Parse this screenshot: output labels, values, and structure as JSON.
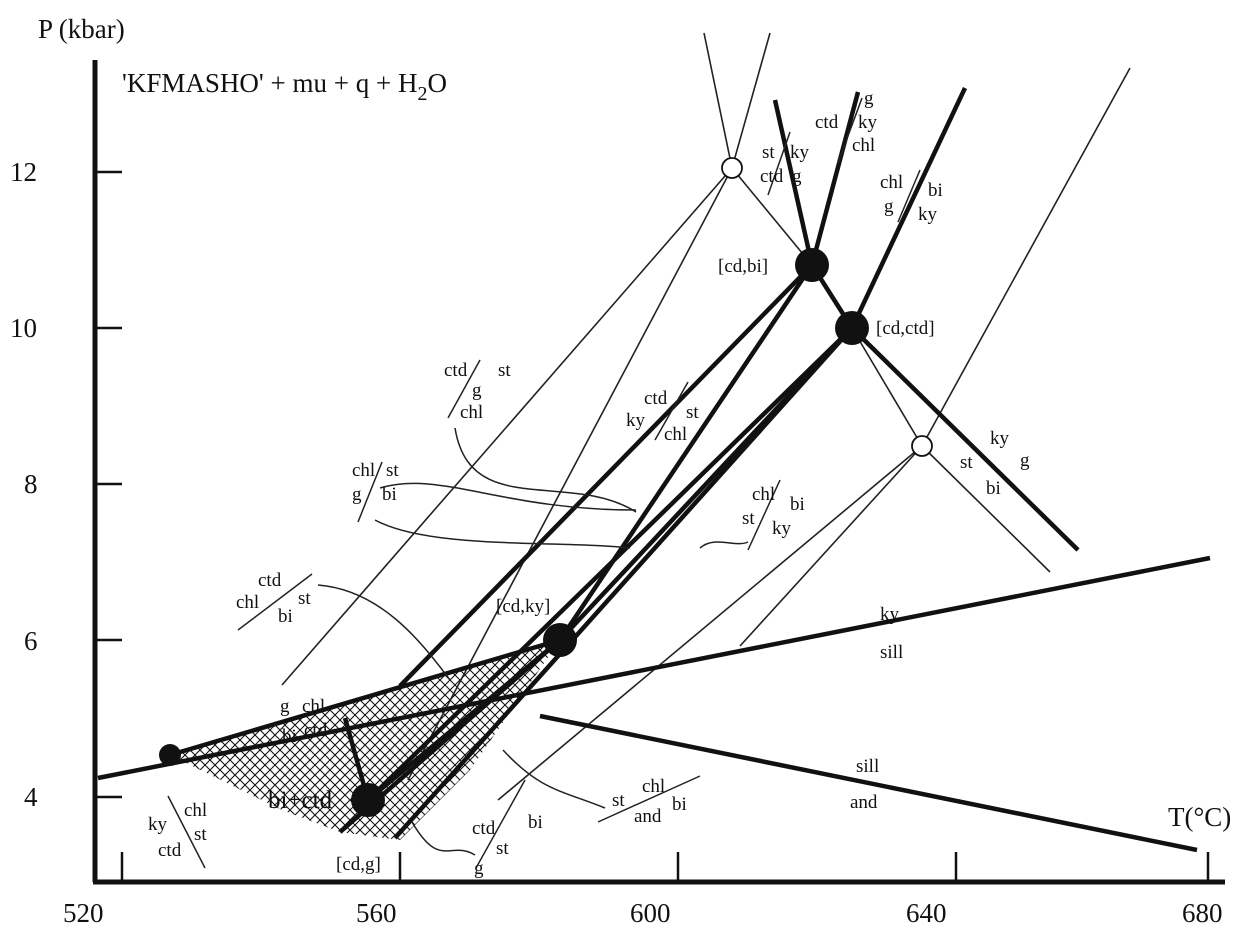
{
  "title": "'KFMASHO' + mu + q + H",
  "title_sub": "2",
  "title_end": "O",
  "axes": {
    "x_label": "T(°C)",
    "y_label": "P (kbar)",
    "x_ticks": [
      "520",
      "560",
      "600",
      "640",
      "680"
    ],
    "y_ticks": [
      "4",
      "6",
      "8",
      "10",
      "12"
    ]
  },
  "invariant_points": [
    {
      "id": "cd_bi",
      "label": "[cd,bi]"
    },
    {
      "id": "cd_ctd",
      "label": "[cd,ctd]"
    },
    {
      "id": "cd_ky",
      "label": "[cd,ky]"
    },
    {
      "id": "cd_g",
      "label": "[cd,g]"
    }
  ],
  "field_label": "bi+ctd",
  "reactions": {
    "g_ctd_ky_chl": [
      "g",
      "ctd",
      "ky",
      "chl"
    ],
    "st_ky_ctd_g": [
      "st",
      "ky",
      "ctd",
      "g"
    ],
    "chl_bi_g_ky": [
      "chl",
      "bi",
      "g",
      "ky"
    ],
    "ctd_g_st_chl": [
      "ctd",
      "g",
      "st",
      "chl"
    ],
    "ctd_ky_st_chl": [
      "ctd",
      "ky",
      "st",
      "chl"
    ],
    "chl_st_g_bi": [
      "chl",
      "st",
      "g",
      "bi"
    ],
    "ky_g_st_bi": [
      "ky",
      "g",
      "st",
      "bi"
    ],
    "chl_bi_st_ky": [
      "chl",
      "bi",
      "st",
      "ky"
    ],
    "ctd_chl_st_bi": [
      "ctd",
      "chl",
      "st",
      "bi"
    ],
    "ky_sill": [
      "ky",
      "sill"
    ],
    "g_chl": [
      "g",
      "chl"
    ],
    "bi_ctd": [
      "bi",
      "ctd"
    ],
    "sill_and": [
      "sill",
      "and"
    ],
    "st_chl_and_bi": [
      "st",
      "chl",
      "and",
      "bi"
    ],
    "ky_chl_ctd_st": [
      "ky",
      "chl",
      "ctd",
      "st"
    ],
    "ctd_bi_st_g": [
      "ctd",
      "bi",
      "st",
      "g"
    ]
  }
}
